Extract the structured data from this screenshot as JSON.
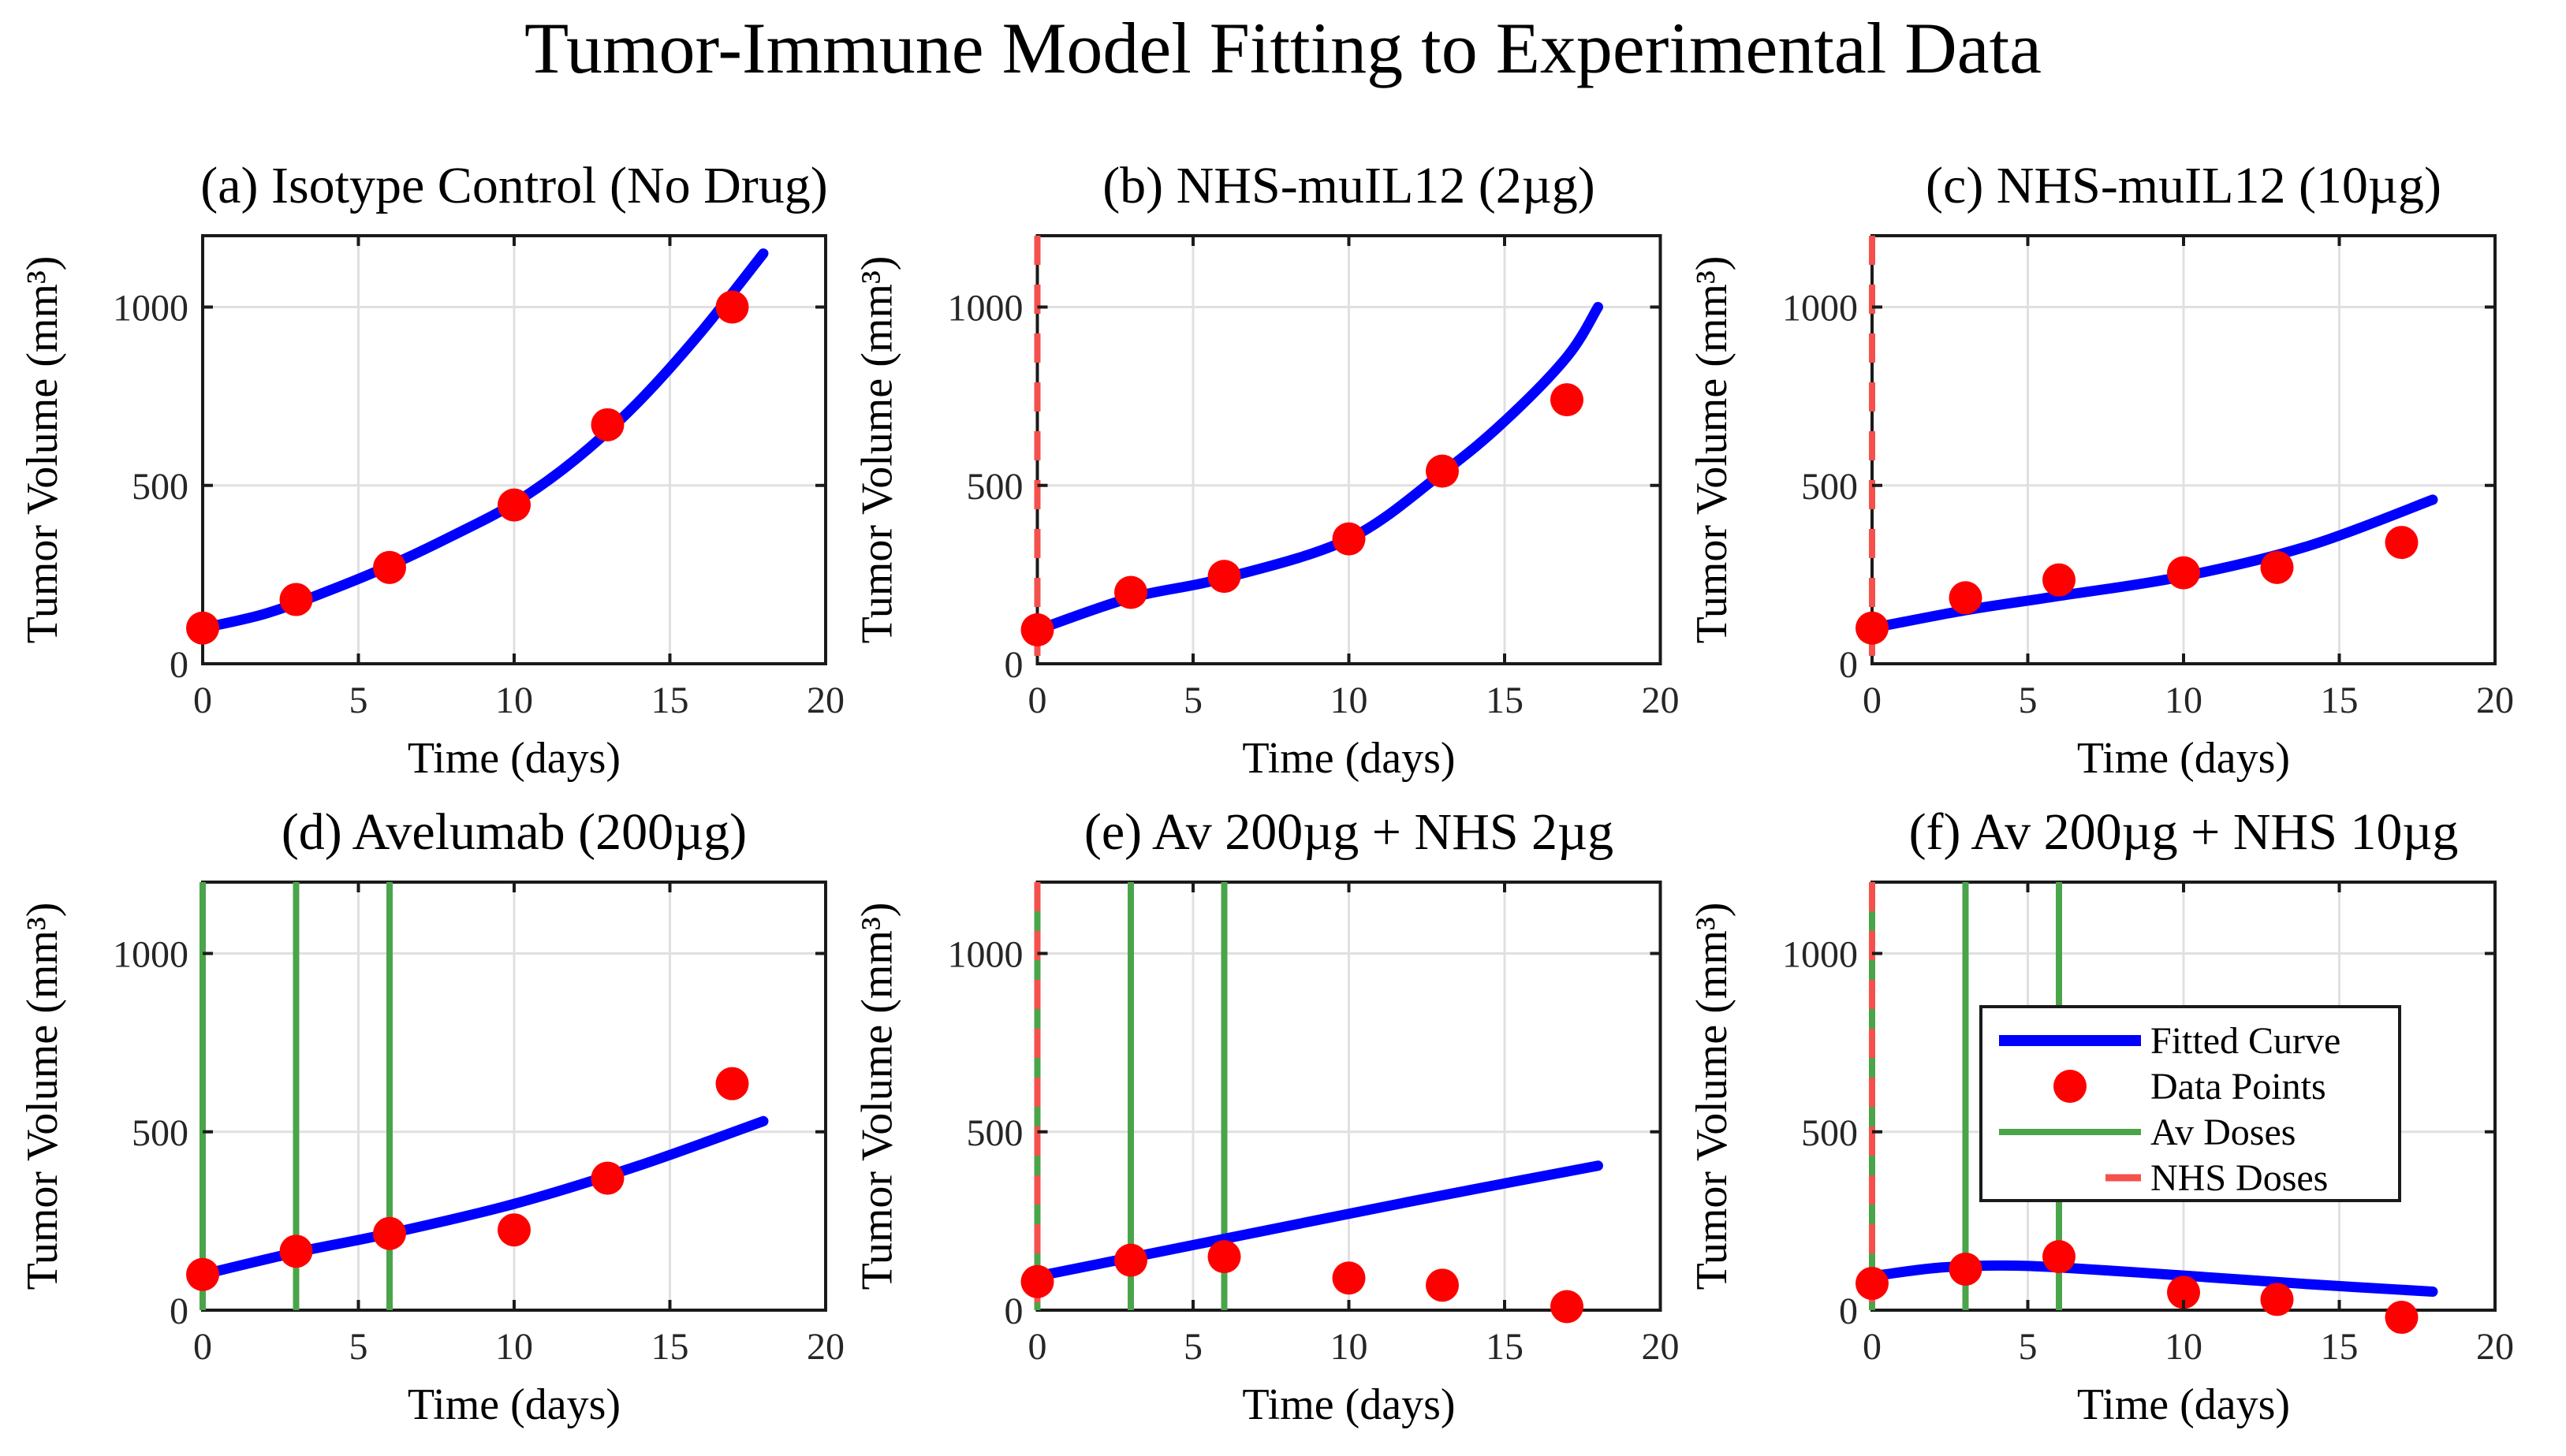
{
  "figure": {
    "title": "Tumor-Immune Model Fitting to Experimental Data",
    "background": "#ffffff"
  },
  "colors": {
    "fitted_curve": "#0000ff",
    "data_points": "#ff0000",
    "av_doses": "#4aa44a",
    "nhs_doses": "#f4514c",
    "gridline": "#e0e0e0",
    "axis_box": "#1a1a1a",
    "tick_label": "#262626",
    "legend_bg": "#ffffff"
  },
  "legend": {
    "entries": [
      {
        "label": "Fitted Curve",
        "type": "line",
        "color_key": "fitted_curve"
      },
      {
        "label": "Data Points",
        "type": "marker",
        "color_key": "data_points"
      },
      {
        "label": "Av Doses",
        "type": "line-thin",
        "color_key": "av_doses"
      },
      {
        "label": "NHS Doses",
        "type": "dashed",
        "color_key": "nhs_doses"
      }
    ]
  },
  "chart_data": [
    {
      "id": "a",
      "type": "line+scatter",
      "title": "(a) Isotype Control (No Drug)",
      "xlabel": "Time (days)",
      "ylabel": "Tumor Volume (mm³)",
      "xlim": [
        0,
        20
      ],
      "ylim": [
        0,
        1200
      ],
      "xticks": [
        0,
        5,
        10,
        15,
        20
      ],
      "yticks": [
        0,
        500,
        1000
      ],
      "xgrid": [
        5,
        10,
        15
      ],
      "ygrid": [
        500,
        1000
      ],
      "data_points": {
        "t": [
          0,
          3,
          6,
          10,
          13,
          17
        ],
        "v": [
          100,
          180,
          270,
          445,
          670,
          1000
        ]
      },
      "fitted_curve": {
        "t": [
          0,
          2,
          4,
          6,
          8,
          10,
          12,
          14,
          16,
          18
        ],
        "v": [
          100,
          140,
          203,
          275,
          358,
          450,
          575,
          735,
          930,
          1150
        ]
      },
      "av_dose_days": [],
      "nhs_dose_days": [],
      "show_legend": false
    },
    {
      "id": "b",
      "type": "line+scatter",
      "title": "(b) NHS-muIL12 (2µg)",
      "xlabel": "Time (days)",
      "ylabel": "Tumor Volume (mm³)",
      "xlim": [
        0,
        20
      ],
      "ylim": [
        0,
        1200
      ],
      "xticks": [
        0,
        5,
        10,
        15,
        20
      ],
      "yticks": [
        0,
        500,
        1000
      ],
      "xgrid": [
        5,
        10,
        15
      ],
      "ygrid": [
        500,
        1000
      ],
      "data_points": {
        "t": [
          0,
          3,
          6,
          10,
          13,
          17
        ],
        "v": [
          95,
          200,
          245,
          350,
          540,
          740
        ]
      },
      "fitted_curve": {
        "t": [
          0,
          3,
          6,
          10,
          13,
          15,
          17,
          18
        ],
        "v": [
          95,
          185,
          240,
          350,
          535,
          680,
          860,
          1000
        ]
      },
      "av_dose_days": [],
      "nhs_dose_days": [
        0
      ],
      "show_legend": false
    },
    {
      "id": "c",
      "type": "line+scatter",
      "title": "(c) NHS-muIL12 (10µg)",
      "xlabel": "Time (days)",
      "ylabel": "Tumor Volume (mm³)",
      "xlim": [
        0,
        20
      ],
      "ylim": [
        0,
        1200
      ],
      "xticks": [
        0,
        5,
        10,
        15,
        20
      ],
      "yticks": [
        0,
        500,
        1000
      ],
      "xgrid": [
        5,
        10,
        15
      ],
      "ygrid": [
        500,
        1000
      ],
      "data_points": {
        "t": [
          0,
          3,
          6,
          10,
          13,
          17
        ],
        "v": [
          100,
          185,
          235,
          255,
          270,
          340
        ]
      },
      "fitted_curve": {
        "t": [
          0,
          3,
          6,
          10,
          14,
          18
        ],
        "v": [
          100,
          150,
          190,
          245,
          330,
          460
        ]
      },
      "av_dose_days": [],
      "nhs_dose_days": [
        0
      ],
      "show_legend": false
    },
    {
      "id": "d",
      "type": "line+scatter",
      "title": "(d) Avelumab (200µg)",
      "xlabel": "Time (days)",
      "ylabel": "Tumor Volume (mm³)",
      "xlim": [
        0,
        20
      ],
      "ylim": [
        0,
        1200
      ],
      "xticks": [
        0,
        5,
        10,
        15,
        20
      ],
      "yticks": [
        0,
        500,
        1000
      ],
      "xgrid": [
        5,
        10,
        15
      ],
      "ygrid": [
        500,
        1000
      ],
      "data_points": {
        "t": [
          0,
          3,
          6,
          10,
          13,
          17
        ],
        "v": [
          100,
          165,
          215,
          225,
          370,
          635
        ]
      },
      "fitted_curve": {
        "t": [
          0,
          3,
          6,
          10,
          14,
          18
        ],
        "v": [
          100,
          162,
          215,
          298,
          405,
          530
        ]
      },
      "av_dose_days": [
        0,
        3,
        6
      ],
      "nhs_dose_days": [],
      "show_legend": false
    },
    {
      "id": "e",
      "type": "line+scatter",
      "title": "(e) Av 200µg + NHS 2µg",
      "xlabel": "Time (days)",
      "ylabel": "Tumor Volume (mm³)",
      "xlim": [
        0,
        20
      ],
      "ylim": [
        0,
        1200
      ],
      "xticks": [
        0,
        5,
        10,
        15,
        20
      ],
      "yticks": [
        0,
        500,
        1000
      ],
      "xgrid": [
        5,
        10,
        15
      ],
      "ygrid": [
        500,
        1000
      ],
      "data_points": {
        "t": [
          0,
          3,
          6,
          10,
          13,
          17
        ],
        "v": [
          80,
          140,
          150,
          90,
          70,
          10
        ]
      },
      "fitted_curve": {
        "t": [
          0,
          6,
          12,
          18
        ],
        "v": [
          95,
          200,
          305,
          405
        ]
      },
      "av_dose_days": [
        0,
        3,
        6
      ],
      "nhs_dose_days": [
        0
      ],
      "show_legend": false
    },
    {
      "id": "f",
      "type": "line+scatter",
      "title": "(f) Av 200µg + NHS 10µg",
      "xlabel": "Time (days)",
      "ylabel": "Tumor Volume (mm³)",
      "xlim": [
        0,
        20
      ],
      "ylim": [
        0,
        1200
      ],
      "xticks": [
        0,
        5,
        10,
        15,
        20
      ],
      "yticks": [
        0,
        500,
        1000
      ],
      "xgrid": [
        5,
        10,
        15
      ],
      "ygrid": [
        500,
        1000
      ],
      "data_points": {
        "t": [
          0,
          3,
          6,
          10,
          13,
          17
        ],
        "v": [
          75,
          115,
          150,
          50,
          30,
          -20
        ]
      },
      "fitted_curve": {
        "t": [
          0,
          2,
          4,
          6,
          10,
          14,
          18
        ],
        "v": [
          95,
          118,
          125,
          120,
          97,
          73,
          52
        ]
      },
      "av_dose_days": [
        0,
        3,
        6
      ],
      "nhs_dose_days": [
        0
      ],
      "show_legend": true
    }
  ]
}
